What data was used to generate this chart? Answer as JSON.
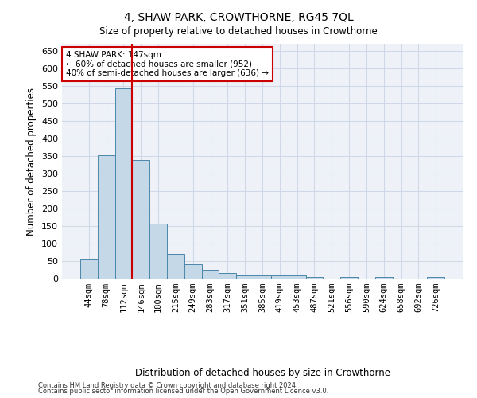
{
  "title": "4, SHAW PARK, CROWTHORNE, RG45 7QL",
  "subtitle": "Size of property relative to detached houses in Crowthorne",
  "xlabel": "Distribution of detached houses by size in Crowthorne",
  "ylabel": "Number of detached properties",
  "bar_labels": [
    "44sqm",
    "78sqm",
    "112sqm",
    "146sqm",
    "180sqm",
    "215sqm",
    "249sqm",
    "283sqm",
    "317sqm",
    "351sqm",
    "385sqm",
    "419sqm",
    "453sqm",
    "487sqm",
    "521sqm",
    "556sqm",
    "590sqm",
    "624sqm",
    "658sqm",
    "692sqm",
    "726sqm"
  ],
  "bar_values": [
    55,
    353,
    542,
    338,
    157,
    70,
    42,
    25,
    17,
    10,
    9,
    9,
    9,
    4,
    0,
    5,
    0,
    5,
    0,
    0,
    5
  ],
  "bar_color": "#c5d8e8",
  "bar_edge_color": "#4a86a8",
  "vline_index": 2.5,
  "vline_color": "#cc0000",
  "annotation_line1": "4 SHAW PARK: 147sqm",
  "annotation_line2": "← 60% of detached houses are smaller (952)",
  "annotation_line3": "40% of semi-detached houses are larger (636) →",
  "annotation_box_color": "#ffffff",
  "annotation_box_edge": "#cc0000",
  "ylim": [
    0,
    670
  ],
  "yticks": [
    0,
    50,
    100,
    150,
    200,
    250,
    300,
    350,
    400,
    450,
    500,
    550,
    600,
    650
  ],
  "grid_color": "#d0d8e8",
  "bg_color": "#eef2f8",
  "footer_line1": "Contains HM Land Registry data © Crown copyright and database right 2024.",
  "footer_line2": "Contains public sector information licensed under the Open Government Licence v3.0."
}
